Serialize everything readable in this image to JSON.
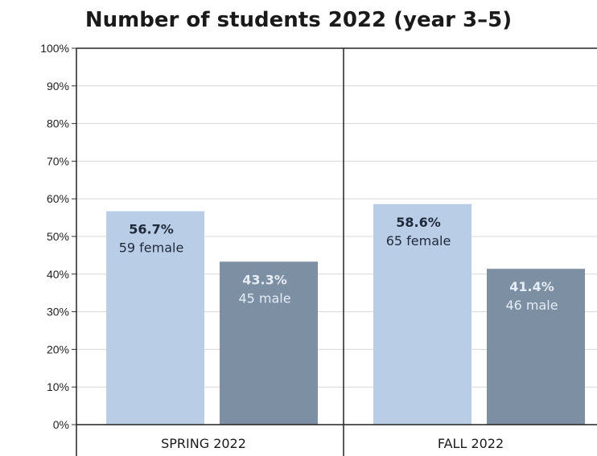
{
  "chart_data": {
    "type": "bar",
    "title": "Number of students 2022 (year 3–5)",
    "categories": [
      "SPRING 2022",
      "FALL 2022"
    ],
    "ylim": [
      0,
      100
    ],
    "yticks": [
      "0%",
      "10%",
      "20%",
      "30%",
      "40%",
      "50%",
      "60%",
      "70%",
      "80%",
      "90%",
      "100%"
    ],
    "grid": true,
    "series": [
      {
        "color": "#b9cde6",
        "label_color": "#1f2a3a",
        "values": [
          56.7,
          58.6
        ],
        "percent_labels": [
          "56.7%",
          "58.6%"
        ],
        "count_labels": [
          "59 female",
          "65 female"
        ]
      },
      {
        "color": "#7d8fa3",
        "label_color": "#e4ecf5",
        "values": [
          43.3,
          41.4
        ],
        "percent_labels": [
          "43.3%",
          "41.4%"
        ],
        "count_labels": [
          "45 male",
          "46 male"
        ]
      }
    ]
  }
}
